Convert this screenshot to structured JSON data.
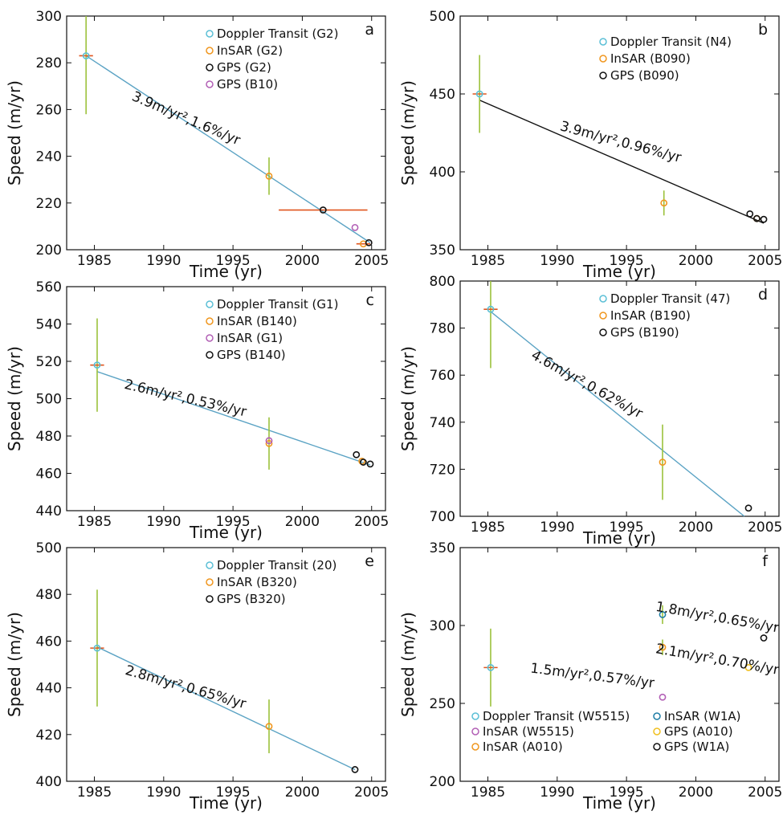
{
  "figure": {
    "panels": [
      "a",
      "b",
      "c",
      "d",
      "e",
      "f"
    ]
  },
  "chart_data": [
    {
      "type": "scatter",
      "panel_label": "a",
      "xlabel": "Time (yr)",
      "ylabel": "Speed (m/yr)",
      "xlim": [
        1983,
        2006
      ],
      "ylim": [
        200,
        300
      ],
      "xticks": [
        1985,
        1990,
        1995,
        2000,
        2005
      ],
      "yticks": [
        200,
        220,
        240,
        260,
        280,
        300
      ],
      "legend_position": "top-right",
      "series": [
        {
          "name": "Doppler Transit (G2)",
          "color": "#5bbfd6",
          "points": [
            {
              "x": 1984.4,
              "y": 283,
              "yerr": 25,
              "xerr": 0.5
            }
          ]
        },
        {
          "name": "InSAR (G2)",
          "color": "#f0961e",
          "points": [
            {
              "x": 1997.6,
              "y": 231.5,
              "yerr": 8
            },
            {
              "x": 2004.4,
              "y": 202.5,
              "xerr": 0.5
            }
          ]
        },
        {
          "name": "GPS (G2)",
          "color": "#111111",
          "points": [
            {
              "x": 2001.5,
              "y": 217,
              "xerr": 3.2
            },
            {
              "x": 2004.8,
              "y": 203
            }
          ]
        },
        {
          "name": "GPS (B10)",
          "color": "#b25fb5",
          "points": [
            {
              "x": 2003.8,
              "y": 209.5
            }
          ]
        }
      ],
      "fit_lines": [
        {
          "color": "#5ba3c4",
          "x": [
            1984.4,
            2004.9
          ],
          "y": [
            283,
            203
          ]
        }
      ],
      "annotations": [
        {
          "text": "3.9m/yr²,1.6%/yr",
          "x": 1991.5,
          "y": 254.5,
          "rotation": 23
        }
      ]
    },
    {
      "type": "scatter",
      "panel_label": "b",
      "xlabel": "Time (yr)",
      "ylabel": "Speed (m/yr)",
      "xlim": [
        1983,
        2006
      ],
      "ylim": [
        350,
        500
      ],
      "xticks": [
        1985,
        1990,
        1995,
        2000,
        2005
      ],
      "yticks": [
        350,
        400,
        450,
        500
      ],
      "legend_position": "top-right",
      "series": [
        {
          "name": "Doppler Transit (N4)",
          "color": "#5bbfd6",
          "points": [
            {
              "x": 1984.4,
              "y": 450,
              "yerr": 25,
              "xerr": 0.5
            }
          ]
        },
        {
          "name": "InSAR (B090)",
          "color": "#f0961e",
          "points": [
            {
              "x": 1997.7,
              "y": 380,
              "yerr": 8
            },
            {
              "x": 2004.4,
              "y": 370
            }
          ]
        },
        {
          "name": "GPS (B090)",
          "color": "#111111",
          "points": [
            {
              "x": 2003.9,
              "y": 373
            },
            {
              "x": 2004.4,
              "y": 370
            },
            {
              "x": 2004.9,
              "y": 369.5
            }
          ]
        }
      ],
      "fit_lines": [
        {
          "color": "#111111",
          "x": [
            1984.4,
            2004.9
          ],
          "y": [
            446,
            367
          ]
        }
      ],
      "annotations": [
        {
          "text": "3.9m/yr²,0.96%/yr",
          "x": 1994.5,
          "y": 416.5,
          "rotation": 15
        }
      ]
    },
    {
      "type": "scatter",
      "panel_label": "c",
      "xlabel": "Time (yr)",
      "ylabel": "Speed (m/yr)",
      "xlim": [
        1983,
        2006
      ],
      "ylim": [
        440,
        560
      ],
      "xticks": [
        1985,
        1990,
        1995,
        2000,
        2005
      ],
      "yticks": [
        440,
        460,
        480,
        500,
        520,
        540,
        560
      ],
      "legend_position": "top-right",
      "series": [
        {
          "name": "Doppler Transit (G1)",
          "color": "#5bbfd6",
          "points": [
            {
              "x": 1985.2,
              "y": 518,
              "yerr": 25,
              "xerr": 0.5
            }
          ]
        },
        {
          "name": "InSAR (B140)",
          "color": "#f0961e",
          "points": [
            {
              "x": 1997.6,
              "y": 476,
              "yerr": 14
            },
            {
              "x": 2004.3,
              "y": 466.5
            }
          ]
        },
        {
          "name": "InSAR (G1)",
          "color": "#b25fb5",
          "points": [
            {
              "x": 1997.6,
              "y": 477.5
            }
          ]
        },
        {
          "name": "GPS (B140)",
          "color": "#111111",
          "points": [
            {
              "x": 2003.9,
              "y": 470
            },
            {
              "x": 2004.4,
              "y": 466
            },
            {
              "x": 2004.9,
              "y": 465
            }
          ]
        }
      ],
      "fit_lines": [
        {
          "color": "#5ba3c4",
          "x": [
            1985.2,
            2004.9
          ],
          "y": [
            514.5,
            464.5
          ]
        }
      ],
      "annotations": [
        {
          "text": "2.6m/yr²,0.53%/yr",
          "x": 1991.5,
          "y": 498,
          "rotation": 13
        }
      ]
    },
    {
      "type": "scatter",
      "panel_label": "d",
      "xlabel": "Time (yr)",
      "ylabel": "Speed (m/yr)",
      "xlim": [
        1983,
        2006
      ],
      "ylim": [
        700,
        800
      ],
      "xticks": [
        1985,
        1990,
        1995,
        2000,
        2005
      ],
      "yticks": [
        700,
        720,
        740,
        760,
        780,
        800
      ],
      "legend_position": "top-right",
      "series": [
        {
          "name": "Doppler Transit (47)",
          "color": "#5bbfd6",
          "points": [
            {
              "x": 1985.2,
              "y": 788,
              "yerr": 25,
              "xerr": 0.5
            }
          ]
        },
        {
          "name": "InSAR (B190)",
          "color": "#f0961e",
          "points": [
            {
              "x": 1997.6,
              "y": 723,
              "yerr": 16
            }
          ]
        },
        {
          "name": "GPS (B190)",
          "color": "#111111",
          "points": [
            {
              "x": 2003.8,
              "y": 703.5
            }
          ]
        }
      ],
      "fit_lines": [
        {
          "color": "#5ba3c4",
          "x": [
            1985.2,
            2003.5
          ],
          "y": [
            787,
            700
          ]
        }
      ],
      "annotations": [
        {
          "text": "4.6m/yr²,0.62%/yr",
          "x": 1992,
          "y": 754.5,
          "rotation": 29
        }
      ]
    },
    {
      "type": "scatter",
      "panel_label": "e",
      "xlabel": "Time (yr)",
      "ylabel": "Speed (m/yr)",
      "xlim": [
        1983,
        2006
      ],
      "ylim": [
        400,
        500
      ],
      "xticks": [
        1985,
        1990,
        1995,
        2000,
        2005
      ],
      "yticks": [
        400,
        420,
        440,
        460,
        480,
        500
      ],
      "legend_position": "top-right",
      "series": [
        {
          "name": "Doppler Transit (20)",
          "color": "#5bbfd6",
          "points": [
            {
              "x": 1985.2,
              "y": 457,
              "yerr": 25,
              "xerr": 0.5
            }
          ]
        },
        {
          "name": "InSAR (B320)",
          "color": "#f0961e",
          "points": [
            {
              "x": 1997.6,
              "y": 423.5,
              "yerr": 11.5
            }
          ]
        },
        {
          "name": "GPS (B320)",
          "color": "#111111",
          "points": [
            {
              "x": 2003.8,
              "y": 405
            }
          ]
        }
      ],
      "fit_lines": [
        {
          "color": "#5ba3c4",
          "x": [
            1985.2,
            2003.8
          ],
          "y": [
            457.5,
            405
          ]
        }
      ],
      "annotations": [
        {
          "text": "2.8m/yr²,0.65%/yr",
          "x": 1991.5,
          "y": 438.5,
          "rotation": 16
        }
      ]
    },
    {
      "type": "scatter",
      "panel_label": "f",
      "xlabel": "Time (yr)",
      "ylabel": "Speed (m/yr)",
      "xlim": [
        1983,
        2006
      ],
      "ylim": [
        200,
        350
      ],
      "xticks": [
        1985,
        1990,
        1995,
        2000,
        2005
      ],
      "yticks": [
        200,
        250,
        300,
        350
      ],
      "legend_position": "bottom",
      "legend_columns": 2,
      "series": [
        {
          "name": "Doppler Transit (W5515)",
          "color": "#5bbfd6",
          "points": [
            {
              "x": 1985.2,
              "y": 273,
              "yerr": 25,
              "xerr": 0.5
            }
          ]
        },
        {
          "name": "InSAR (W5515)",
          "color": "#b25fb5",
          "points": [
            {
              "x": 1997.6,
              "y": 254
            }
          ]
        },
        {
          "name": "InSAR (A010)",
          "color": "#f0961e",
          "points": [
            {
              "x": 1997.6,
              "y": 286,
              "yerr": 5
            }
          ]
        },
        {
          "name": "InSAR (W1A)",
          "color": "#1f7ea6",
          "points": [
            {
              "x": 1997.6,
              "y": 307,
              "yerr": 6
            }
          ]
        },
        {
          "name": "GPS (A010)",
          "color": "#f0c020",
          "points": [
            {
              "x": 2003.8,
              "y": 273
            }
          ]
        },
        {
          "name": "GPS (W1A)",
          "color": "#111111",
          "points": [
            {
              "x": 2004.9,
              "y": 292
            }
          ]
        }
      ],
      "fit_lines": [],
      "annotations": [
        {
          "text": "1.8m/yr²,0.65%/yr",
          "x": 2001.5,
          "y": 302.5,
          "rotation": 10
        },
        {
          "text": "2.1m/yr²,0.70%/yr",
          "x": 2001.5,
          "y": 275.5,
          "rotation": 10
        },
        {
          "text": "1.5m/yr²,0.57%/yr",
          "x": 1992.5,
          "y": 265,
          "rotation": 7
        }
      ]
    }
  ]
}
